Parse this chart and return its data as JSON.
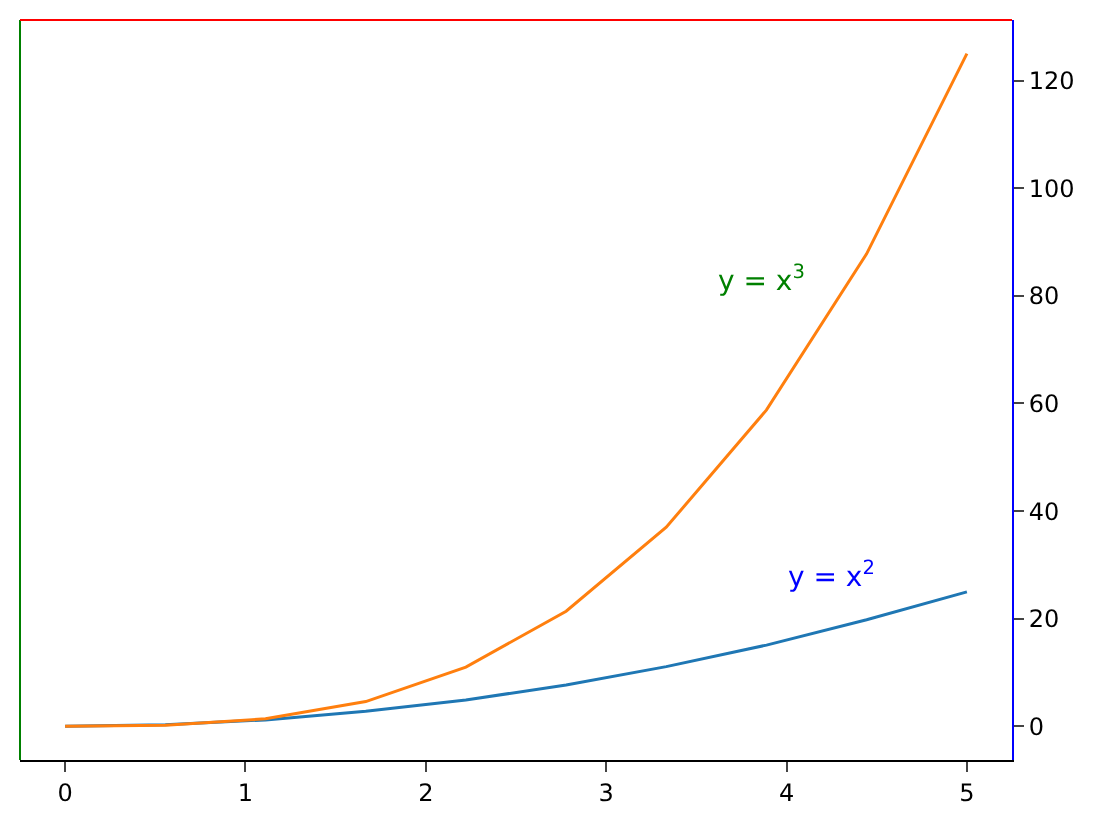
{
  "chart_data": {
    "type": "line",
    "x": [
      0,
      0.556,
      1.111,
      1.667,
      2.222,
      2.778,
      3.333,
      3.889,
      4.444,
      5
    ],
    "series": [
      {
        "color": "#1f77b4",
        "values": [
          0,
          0.3,
          1.2,
          2.8,
          4.9,
          7.7,
          11.1,
          15.1,
          19.8,
          25
        ]
      },
      {
        "color": "#ff7f0e",
        "values": [
          0,
          0.2,
          1.4,
          4.6,
          11.0,
          21.4,
          37.0,
          58.8,
          87.8,
          125
        ]
      }
    ],
    "annotations": [
      "y = x$^{3}$",
      "y = x$^{2}$"
    ],
    "xlim": [
      -0.25,
      5.25
    ],
    "xticks": [
      0,
      1,
      2,
      3,
      4,
      5
    ],
    "ylim": [
      -6.25,
      131.25
    ],
    "yticks": [
      0,
      20,
      40,
      60,
      80,
      100,
      120
    ],
    "marker": "none",
    "line_style": "solid"
  }
}
